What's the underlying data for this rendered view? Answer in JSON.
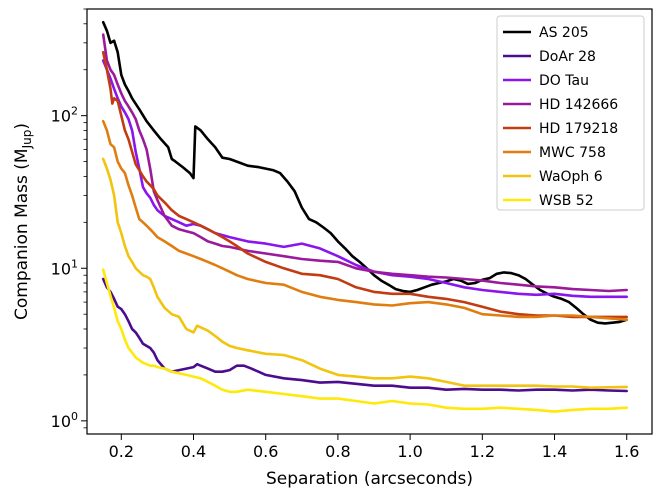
{
  "chart_data": {
    "type": "line",
    "title": "",
    "xlabel": "Separation (arcseconds)",
    "ylabel_main": "Companion Mass (M",
    "ylabel_sub": "Jup",
    "ylabel_close": ")",
    "yscale": "log",
    "xlim": [
      0.105,
      1.67
    ],
    "ylim": [
      0.82,
      500
    ],
    "xticks": [
      0.2,
      0.4,
      0.6,
      0.8,
      1.0,
      1.2,
      1.4,
      1.6
    ],
    "xtick_labels": [
      "0.2",
      "0.4",
      "0.6",
      "0.8",
      "1.0",
      "1.2",
      "1.4",
      "1.6"
    ],
    "yticks": [
      {
        "value": 1,
        "base": "10",
        "exp": "0"
      },
      {
        "value": 10,
        "base": "10",
        "exp": "1"
      },
      {
        "value": 100,
        "base": "10",
        "exp": "2"
      }
    ],
    "legend_position": "top-right",
    "series": [
      {
        "name": "AS 205",
        "color": "#000000",
        "x": [
          0.15,
          0.16,
          0.17,
          0.18,
          0.19,
          0.2,
          0.21,
          0.22,
          0.23,
          0.25,
          0.27,
          0.29,
          0.31,
          0.33,
          0.34,
          0.35,
          0.37,
          0.39,
          0.4,
          0.405,
          0.42,
          0.44,
          0.46,
          0.48,
          0.5,
          0.52,
          0.55,
          0.58,
          0.6,
          0.62,
          0.64,
          0.66,
          0.68,
          0.7,
          0.72,
          0.74,
          0.76,
          0.78,
          0.8,
          0.82,
          0.84,
          0.86,
          0.88,
          0.9,
          0.92,
          0.94,
          0.96,
          0.98,
          1.0,
          1.02,
          1.04,
          1.06,
          1.08,
          1.1,
          1.12,
          1.14,
          1.16,
          1.18,
          1.2,
          1.22,
          1.24,
          1.26,
          1.28,
          1.3,
          1.32,
          1.34,
          1.36,
          1.38,
          1.4,
          1.42,
          1.44,
          1.46,
          1.48,
          1.5,
          1.52,
          1.54,
          1.56,
          1.58,
          1.6
        ],
        "y": [
          410,
          360,
          300,
          310,
          260,
          185,
          160,
          145,
          130,
          110,
          92,
          80,
          70,
          62,
          52,
          50,
          46,
          42,
          39,
          85,
          80,
          70,
          62,
          53,
          52,
          50,
          47,
          46,
          45,
          44,
          42,
          37,
          32,
          25,
          21,
          20,
          18.5,
          17,
          15,
          13.5,
          12,
          11,
          10,
          9,
          8.3,
          7.8,
          7.3,
          7.1,
          7.0,
          7.2,
          7.5,
          7.8,
          8.0,
          8.2,
          8.5,
          8.3,
          7.9,
          8.0,
          8.4,
          8.6,
          9.2,
          9.4,
          9.3,
          9.0,
          8.5,
          7.8,
          7.2,
          6.8,
          6.5,
          6.3,
          6.0,
          5.5,
          5.0,
          4.6,
          4.4,
          4.35,
          4.4,
          4.45,
          4.6
        ]
      },
      {
        "name": "DoAr 28",
        "color": "#4b0c8f",
        "x": [
          0.15,
          0.16,
          0.17,
          0.18,
          0.19,
          0.2,
          0.21,
          0.22,
          0.23,
          0.24,
          0.25,
          0.26,
          0.27,
          0.28,
          0.29,
          0.3,
          0.32,
          0.34,
          0.36,
          0.38,
          0.4,
          0.41,
          0.42,
          0.44,
          0.46,
          0.48,
          0.5,
          0.52,
          0.54,
          0.56,
          0.58,
          0.6,
          0.65,
          0.7,
          0.75,
          0.8,
          0.85,
          0.9,
          0.95,
          1.0,
          1.05,
          1.1,
          1.15,
          1.2,
          1.25,
          1.3,
          1.35,
          1.4,
          1.45,
          1.5,
          1.55,
          1.6
        ],
        "y": [
          8.5,
          7.5,
          7.0,
          6.3,
          5.6,
          5.4,
          5.0,
          4.5,
          4.0,
          3.8,
          3.5,
          3.2,
          3.1,
          3.0,
          2.8,
          2.5,
          2.2,
          2.1,
          2.15,
          2.2,
          2.25,
          2.35,
          2.3,
          2.2,
          2.1,
          2.1,
          2.15,
          2.3,
          2.3,
          2.2,
          2.1,
          2.0,
          1.9,
          1.85,
          1.78,
          1.8,
          1.75,
          1.7,
          1.7,
          1.65,
          1.65,
          1.6,
          1.62,
          1.6,
          1.6,
          1.58,
          1.6,
          1.6,
          1.58,
          1.6,
          1.58,
          1.57
        ]
      },
      {
        "name": "DO Tau",
        "color": "#8a15ee",
        "x": [
          0.15,
          0.16,
          0.17,
          0.18,
          0.19,
          0.2,
          0.21,
          0.22,
          0.23,
          0.24,
          0.25,
          0.26,
          0.27,
          0.28,
          0.29,
          0.3,
          0.32,
          0.34,
          0.36,
          0.38,
          0.4,
          0.42,
          0.44,
          0.46,
          0.48,
          0.5,
          0.55,
          0.6,
          0.65,
          0.7,
          0.75,
          0.8,
          0.85,
          0.9,
          0.95,
          1.0,
          1.05,
          1.1,
          1.15,
          1.2,
          1.25,
          1.3,
          1.35,
          1.4,
          1.45,
          1.5,
          1.55,
          1.6
        ],
        "y": [
          230,
          200,
          175,
          150,
          130,
          115,
          105,
          95,
          80,
          58,
          45,
          34,
          31,
          29,
          26,
          24,
          22,
          21,
          20,
          19,
          19.5,
          19,
          18,
          17,
          16.5,
          16,
          15,
          14.5,
          13.8,
          14.5,
          13.5,
          12,
          10.5,
          9.5,
          9.0,
          8.8,
          8.5,
          8.0,
          7.5,
          7.2,
          7.0,
          6.8,
          6.7,
          6.8,
          6.6,
          6.5,
          6.5,
          6.5
        ]
      },
      {
        "name": "HD 142666",
        "color": "#9b1a9b",
        "x": [
          0.15,
          0.16,
          0.17,
          0.18,
          0.19,
          0.2,
          0.21,
          0.22,
          0.23,
          0.24,
          0.25,
          0.26,
          0.27,
          0.28,
          0.29,
          0.3,
          0.32,
          0.34,
          0.36,
          0.38,
          0.4,
          0.42,
          0.44,
          0.46,
          0.48,
          0.5,
          0.55,
          0.6,
          0.65,
          0.7,
          0.75,
          0.8,
          0.85,
          0.9,
          0.95,
          1.0,
          1.05,
          1.1,
          1.15,
          1.2,
          1.25,
          1.3,
          1.35,
          1.4,
          1.45,
          1.5,
          1.55,
          1.6
        ],
        "y": [
          340,
          230,
          200,
          185,
          160,
          140,
          125,
          115,
          105,
          95,
          80,
          70,
          60,
          45,
          32,
          28,
          22,
          19,
          18,
          17.5,
          17,
          16,
          15,
          14.5,
          14,
          13.8,
          13,
          12.5,
          12,
          11.5,
          11.2,
          11,
          10,
          9.5,
          9.2,
          9.0,
          8.8,
          8.7,
          8.5,
          8.3,
          8.0,
          7.8,
          7.6,
          7.5,
          7.3,
          7.2,
          7.1,
          7.2
        ]
      },
      {
        "name": "HD 179218",
        "color": "#c23b12",
        "x": [
          0.15,
          0.16,
          0.17,
          0.175,
          0.18,
          0.19,
          0.2,
          0.21,
          0.22,
          0.23,
          0.24,
          0.25,
          0.26,
          0.27,
          0.28,
          0.29,
          0.3,
          0.32,
          0.34,
          0.36,
          0.38,
          0.4,
          0.42,
          0.44,
          0.46,
          0.48,
          0.5,
          0.52,
          0.55,
          0.6,
          0.65,
          0.7,
          0.75,
          0.8,
          0.85,
          0.9,
          0.95,
          1.0,
          1.05,
          1.1,
          1.15,
          1.2,
          1.25,
          1.3,
          1.35,
          1.4,
          1.45,
          1.5,
          1.55,
          1.6
        ],
        "y": [
          260,
          200,
          150,
          120,
          130,
          125,
          100,
          80,
          70,
          58,
          48,
          44,
          40,
          37,
          35,
          33,
          30,
          27,
          24,
          22,
          21,
          20,
          19,
          18,
          17,
          16,
          15,
          14,
          12.5,
          11,
          10,
          9.2,
          9,
          8.5,
          7.5,
          7,
          6.8,
          6.8,
          6.5,
          6.3,
          6.0,
          5.6,
          5.2,
          5.0,
          4.9,
          4.9,
          4.8,
          4.8,
          4.8,
          4.8
        ]
      },
      {
        "name": "MWC 758",
        "color": "#e07d10",
        "x": [
          0.15,
          0.16,
          0.17,
          0.18,
          0.19,
          0.2,
          0.21,
          0.22,
          0.23,
          0.24,
          0.25,
          0.26,
          0.27,
          0.28,
          0.29,
          0.3,
          0.32,
          0.34,
          0.36,
          0.38,
          0.4,
          0.42,
          0.44,
          0.46,
          0.48,
          0.5,
          0.52,
          0.55,
          0.6,
          0.65,
          0.7,
          0.75,
          0.8,
          0.85,
          0.9,
          0.95,
          1.0,
          1.05,
          1.1,
          1.15,
          1.2,
          1.25,
          1.3,
          1.35,
          1.4,
          1.45,
          1.5,
          1.55,
          1.6
        ],
        "y": [
          92,
          80,
          65,
          62,
          50,
          45,
          42,
          35,
          30,
          25,
          21,
          20,
          19,
          18,
          17,
          16,
          15,
          14,
          13,
          12.5,
          12,
          11.5,
          11,
          10.5,
          10,
          9.5,
          9,
          8.5,
          8,
          7.8,
          7,
          6.5,
          6.2,
          6,
          5.8,
          5.7,
          5.9,
          6.0,
          5.8,
          5.5,
          5.0,
          4.9,
          4.8,
          4.8,
          4.9,
          4.9,
          4.8,
          4.7,
          4.6
        ]
      },
      {
        "name": "WaOph 6",
        "color": "#f1c40f",
        "x": [
          0.15,
          0.16,
          0.17,
          0.18,
          0.19,
          0.2,
          0.21,
          0.22,
          0.23,
          0.24,
          0.25,
          0.26,
          0.27,
          0.28,
          0.29,
          0.3,
          0.32,
          0.34,
          0.36,
          0.38,
          0.4,
          0.41,
          0.42,
          0.44,
          0.46,
          0.48,
          0.5,
          0.52,
          0.55,
          0.6,
          0.65,
          0.7,
          0.75,
          0.8,
          0.85,
          0.9,
          0.95,
          1.0,
          1.05,
          1.1,
          1.15,
          1.2,
          1.25,
          1.3,
          1.35,
          1.4,
          1.45,
          1.5,
          1.55,
          1.6
        ],
        "y": [
          52,
          45,
          38,
          30,
          20,
          17,
          14,
          12,
          11,
          10,
          9.5,
          9,
          8.8,
          8.5,
          7.5,
          6.5,
          5.5,
          5.0,
          4.8,
          4.0,
          3.8,
          4.2,
          4.1,
          3.9,
          3.6,
          3.3,
          3.1,
          3.0,
          2.9,
          2.75,
          2.7,
          2.5,
          2.2,
          2.0,
          1.95,
          1.9,
          1.9,
          1.95,
          1.9,
          1.8,
          1.7,
          1.7,
          1.7,
          1.7,
          1.7,
          1.68,
          1.68,
          1.65,
          1.66,
          1.67
        ]
      },
      {
        "name": "WSB 52",
        "color": "#ffe90a",
        "x": [
          0.15,
          0.16,
          0.17,
          0.18,
          0.19,
          0.2,
          0.21,
          0.22,
          0.23,
          0.24,
          0.25,
          0.26,
          0.27,
          0.28,
          0.29,
          0.3,
          0.32,
          0.34,
          0.36,
          0.38,
          0.4,
          0.42,
          0.44,
          0.46,
          0.48,
          0.5,
          0.52,
          0.55,
          0.6,
          0.65,
          0.7,
          0.75,
          0.8,
          0.85,
          0.9,
          0.95,
          1.0,
          1.05,
          1.1,
          1.15,
          1.2,
          1.25,
          1.3,
          1.35,
          1.4,
          1.45,
          1.5,
          1.55,
          1.6
        ],
        "y": [
          9.8,
          8,
          6.6,
          5.5,
          4.5,
          4.0,
          3.4,
          3.0,
          2.8,
          2.6,
          2.5,
          2.4,
          2.35,
          2.3,
          2.3,
          2.25,
          2.2,
          2.1,
          2.05,
          2.0,
          1.95,
          1.9,
          1.8,
          1.7,
          1.6,
          1.55,
          1.55,
          1.6,
          1.55,
          1.5,
          1.45,
          1.4,
          1.4,
          1.35,
          1.3,
          1.35,
          1.3,
          1.28,
          1.22,
          1.2,
          1.2,
          1.22,
          1.2,
          1.18,
          1.15,
          1.18,
          1.2,
          1.2,
          1.22
        ]
      }
    ]
  }
}
